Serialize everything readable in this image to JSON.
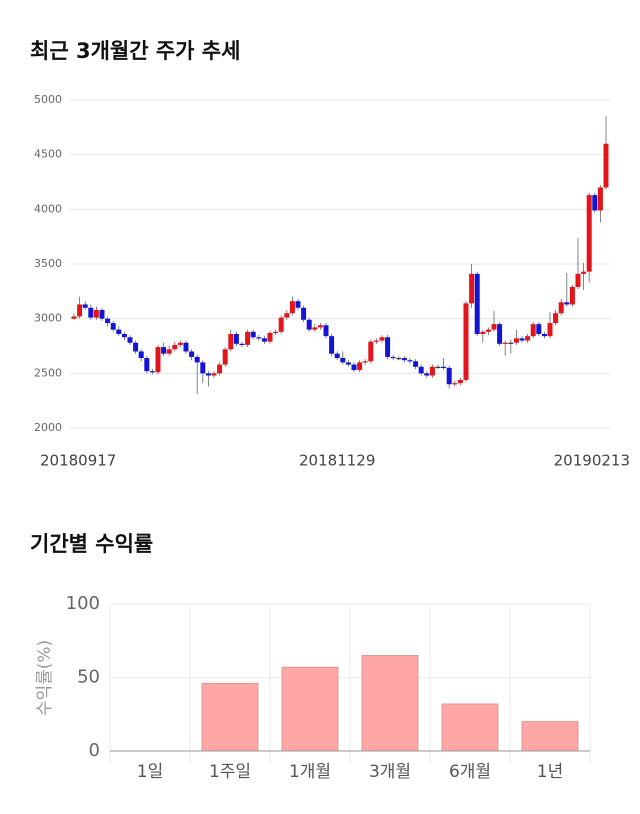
{
  "chart_data": [
    {
      "type": "candlestick",
      "title": "최근 3개월간 주가 추세",
      "categories": [
        "20180917",
        null,
        null,
        null,
        null,
        null,
        null,
        null,
        null,
        null,
        null,
        null,
        null,
        null,
        null,
        null,
        null,
        null,
        null,
        null,
        null,
        null,
        null,
        null,
        null,
        null,
        null,
        null,
        null,
        null,
        null,
        null,
        null,
        null,
        null,
        null,
        null,
        null,
        null,
        null,
        null,
        null,
        null,
        null,
        null,
        null,
        null,
        "20181129",
        null,
        null,
        null,
        null,
        null,
        null,
        null,
        null,
        null,
        null,
        null,
        null,
        null,
        null,
        null,
        null,
        null,
        null,
        null,
        null,
        null,
        null,
        null,
        null,
        null,
        null,
        null,
        null,
        null,
        null,
        null,
        null,
        null,
        null,
        null,
        null,
        null,
        null,
        null,
        null,
        null,
        null,
        null,
        null,
        null,
        null,
        null,
        "20190213"
      ],
      "open": [
        3000,
        3020,
        3130,
        3100,
        3010,
        3080,
        3000,
        2960,
        2900,
        2860,
        2830,
        2780,
        2700,
        2640,
        2520,
        2510,
        2740,
        2680,
        2720,
        2760,
        2780,
        2700,
        2650,
        2600,
        2500,
        2480,
        2500,
        2580,
        2720,
        2860,
        2770,
        2760,
        2880,
        2830,
        2820,
        2790,
        2870,
        2880,
        3010,
        3050,
        3160,
        3100,
        2990,
        2900,
        2920,
        2940,
        2840,
        2680,
        2640,
        2600,
        2580,
        2530,
        2600,
        2610,
        2790,
        2800,
        2830,
        2650,
        2640,
        2640,
        2620,
        2610,
        2560,
        2500,
        2480,
        2560,
        2560,
        2550,
        2400,
        2410,
        2440,
        3140,
        3410,
        2860,
        2880,
        2900,
        2950,
        2770,
        2780,
        2780,
        2820,
        2800,
        2840,
        2950,
        2860,
        2840,
        2960,
        3050,
        3150,
        3130,
        3290,
        3410,
        3430,
        4130,
        3990,
        4200
      ],
      "high": [
        3050,
        3200,
        3160,
        3130,
        3110,
        3100,
        3020,
        2980,
        2930,
        2880,
        2850,
        2800,
        2720,
        2660,
        2540,
        2760,
        2780,
        2750,
        2790,
        2800,
        2800,
        2720,
        2670,
        2620,
        2520,
        2520,
        2600,
        2740,
        2900,
        2880,
        2790,
        2900,
        2900,
        2850,
        2840,
        2890,
        2900,
        3030,
        3080,
        3200,
        3180,
        3120,
        3010,
        2950,
        2960,
        2960,
        2860,
        2700,
        2700,
        2620,
        2600,
        2620,
        2630,
        2810,
        2820,
        2850,
        2850,
        2670,
        2660,
        2660,
        2640,
        2630,
        2580,
        2520,
        2580,
        2580,
        2640,
        2570,
        2430,
        2460,
        3160,
        3500,
        3430,
        2900,
        2920,
        3070,
        2970,
        2800,
        2810,
        2900,
        2840,
        2860,
        2970,
        2970,
        2880,
        3060,
        3080,
        3180,
        3420,
        3310,
        3740,
        3510,
        4150,
        4150,
        4220,
        4850
      ],
      "low": [
        2990,
        3000,
        3080,
        2990,
        2990,
        2980,
        2930,
        2880,
        2840,
        2800,
        2760,
        2680,
        2610,
        2500,
        2490,
        2490,
        2660,
        2660,
        2700,
        2740,
        2680,
        2620,
        2310,
        2410,
        2380,
        2460,
        2480,
        2560,
        2700,
        2750,
        2740,
        2740,
        2810,
        2800,
        2770,
        2770,
        2850,
        2860,
        2990,
        3030,
        3080,
        2970,
        2880,
        2880,
        2900,
        2820,
        2660,
        2620,
        2580,
        2560,
        2510,
        2510,
        2580,
        2590,
        2770,
        2780,
        2630,
        2620,
        2620,
        2600,
        2590,
        2540,
        2480,
        2460,
        2460,
        2540,
        2530,
        2360,
        2380,
        2390,
        2420,
        3100,
        2840,
        2780,
        2850,
        2880,
        2750,
        2660,
        2680,
        2760,
        2780,
        2780,
        2820,
        2840,
        2820,
        2820,
        2940,
        3030,
        3110,
        3110,
        3270,
        3260,
        3330,
        3970,
        3880,
        4180
      ],
      "close": [
        3020,
        3130,
        3100,
        3010,
        3080,
        3000,
        2960,
        2900,
        2860,
        2830,
        2780,
        2700,
        2640,
        2520,
        2510,
        2740,
        2680,
        2720,
        2760,
        2780,
        2700,
        2650,
        2600,
        2500,
        2480,
        2500,
        2580,
        2720,
        2860,
        2770,
        2760,
        2880,
        2830,
        2820,
        2790,
        2870,
        2880,
        3010,
        3050,
        3160,
        3100,
        2990,
        2900,
        2920,
        2940,
        2840,
        2680,
        2640,
        2600,
        2580,
        2530,
        2600,
        2610,
        2790,
        2800,
        2830,
        2650,
        2640,
        2640,
        2620,
        2610,
        2560,
        2500,
        2480,
        2560,
        2560,
        2550,
        2400,
        2410,
        2440,
        3140,
        3410,
        2860,
        2880,
        2900,
        2950,
        2770,
        2780,
        2780,
        2820,
        2800,
        2840,
        2950,
        2860,
        2840,
        2960,
        3050,
        3150,
        3130,
        3290,
        3410,
        3430,
        4130,
        3990,
        4200,
        4600
      ],
      "up_color": "#e3151b",
      "down_color": "#1414d4",
      "ylim": [
        2000,
        5000
      ],
      "yticks": [
        2000,
        2500,
        3000,
        3500,
        4000,
        4500,
        5000
      ],
      "grid": true
    },
    {
      "type": "bar",
      "title": "기간별 수익률",
      "ylabel": "수익률(%)",
      "categories": [
        "1일",
        "1주일",
        "1개월",
        "3개월",
        "6개월",
        "1년"
      ],
      "values": [
        0,
        46,
        57,
        65,
        32,
        20
      ],
      "color": "#ffa6a6",
      "ylim": [
        0,
        100
      ],
      "yticks": [
        0,
        50,
        100
      ],
      "grid": true
    }
  ]
}
